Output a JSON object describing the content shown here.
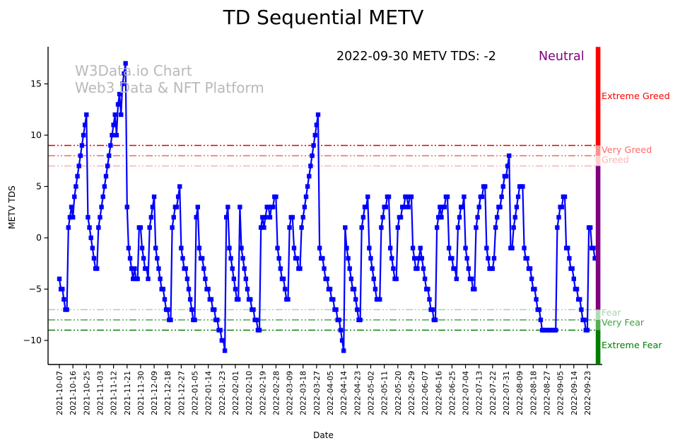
{
  "title": "TD Sequential METV",
  "watermark": {
    "line1": "W3Data.io Chart",
    "line2": "Web3 Data & NFT Platform"
  },
  "annotation": {
    "text": "2022-09-30 METV TDS: -2",
    "status": "Neutral",
    "status_color": "#800080"
  },
  "axes": {
    "x_label": "Date",
    "y_label": "METV TDS",
    "y_ticks": [
      15,
      10,
      5,
      0,
      -5,
      -10
    ],
    "y_tick_labels": [
      "15",
      "10",
      "5",
      "0",
      "−5",
      "−10"
    ],
    "x_tick_interval_days": 9,
    "x_tick_labels": [
      "2021-10-07",
      "2021-10-16",
      "2021-10-25",
      "2021-11-03",
      "2021-11-12",
      "2021-11-21",
      "2021-11-30",
      "2021-12-09",
      "2021-12-18",
      "2021-12-27",
      "2022-01-05",
      "2022-01-14",
      "2022-01-23",
      "2022-02-01",
      "2022-02-10",
      "2022-02-19",
      "2022-02-28",
      "2022-03-09",
      "2022-03-18",
      "2022-03-27",
      "2022-04-05",
      "2022-04-14",
      "2022-04-23",
      "2022-05-02",
      "2022-05-11",
      "2022-05-20",
      "2022-05-29",
      "2022-06-07",
      "2022-06-16",
      "2022-06-25",
      "2022-07-04",
      "2022-07-13",
      "2022-07-22",
      "2022-07-31",
      "2022-08-09",
      "2022-08-18",
      "2022-08-27",
      "2022-09-05",
      "2022-09-14",
      "2022-09-23"
    ],
    "ylim": [
      -12.4,
      18.6
    ],
    "grid": false
  },
  "zones": [
    {
      "label": "Extreme Greed",
      "value": 9,
      "line_color": "#e10000",
      "label_color": "#ff0000"
    },
    {
      "label": "Very Greed",
      "value": 8,
      "line_color": "#ff6262",
      "label_color": "#ff6a6a"
    },
    {
      "label": "Greed",
      "value": 7,
      "line_color": "#ffb0b0",
      "label_color": "#ffb4b4"
    },
    {
      "label": "Fear",
      "value": -7,
      "line_color": "#a5d6a5",
      "label_color": "#a9d3a9"
    },
    {
      "label": "Very Fear",
      "value": -8,
      "line_color": "#4fa04f",
      "label_color": "#41a041"
    },
    {
      "label": "Extreme Fear",
      "value": -9,
      "line_color": "#0c7c0c",
      "label_color": "#008000"
    }
  ],
  "sentiment_bar": [
    {
      "zone": "extreme-greed",
      "from_value": 18.6,
      "to_value": 9,
      "color": "#ff0000"
    },
    {
      "zone": "very-greed",
      "from_value": 9,
      "to_value": 8,
      "color": "#ff9090"
    },
    {
      "zone": "greed",
      "from_value": 8,
      "to_value": 7,
      "color": "#ffcfcf"
    },
    {
      "zone": "neutral",
      "from_value": 7,
      "to_value": -7,
      "color": "#800080"
    },
    {
      "zone": "fear",
      "from_value": -7,
      "to_value": -8,
      "color": "#b5dcb5"
    },
    {
      "zone": "very-fear",
      "from_value": -8,
      "to_value": -9,
      "color": "#5dab5d"
    },
    {
      "zone": "extreme-fear",
      "from_value": -9,
      "to_value": -12.4,
      "color": "#007d00"
    }
  ],
  "chart_data": {
    "type": "line",
    "series_name": "METV TDS",
    "start_date": "2021-10-07",
    "end_date": "2022-09-30",
    "frequency": "daily",
    "line_color": "#0000ff",
    "marker": "square",
    "title": "TD Sequential METV",
    "xlabel": "Date",
    "ylabel": "METV TDS",
    "ylim": [
      -12.4,
      18.6
    ],
    "legend_position": "none",
    "values": [
      -4,
      -5,
      -5,
      -6,
      -7,
      -7,
      1,
      2,
      3,
      2,
      4,
      5,
      6,
      7,
      8,
      9,
      10,
      11,
      12,
      2,
      1,
      0,
      -1,
      -2,
      -3,
      -3,
      1,
      2,
      3,
      4,
      5,
      6,
      7,
      8,
      9,
      10,
      11,
      12,
      10,
      13,
      14,
      12,
      15,
      16,
      17,
      3,
      -1,
      -2,
      -3,
      -4,
      -3,
      -4,
      -4,
      1,
      1,
      -1,
      -2,
      -3,
      -3,
      -4,
      1,
      2,
      3,
      4,
      -1,
      -2,
      -3,
      -4,
      -5,
      -5,
      -6,
      -7,
      -7,
      -8,
      -8,
      1,
      2,
      3,
      3,
      4,
      5,
      -1,
      -2,
      -3,
      -3,
      -4,
      -5,
      -6,
      -7,
      -8,
      -8,
      2,
      3,
      -1,
      -2,
      -2,
      -3,
      -4,
      -5,
      -5,
      -6,
      -6,
      -7,
      -7,
      -8,
      -8,
      -9,
      -9,
      -10,
      -10,
      -11,
      2,
      3,
      -1,
      -2,
      -3,
      -4,
      -5,
      -6,
      -6,
      3,
      -1,
      -2,
      -3,
      -4,
      -5,
      -6,
      -6,
      -7,
      -7,
      -8,
      -8,
      -9,
      -9,
      1,
      2,
      1,
      2,
      3,
      3,
      2,
      3,
      3,
      4,
      4,
      -1,
      -2,
      -3,
      -4,
      -4,
      -5,
      -6,
      -6,
      1,
      2,
      2,
      -1,
      -2,
      -2,
      -3,
      -3,
      1,
      2,
      3,
      4,
      5,
      6,
      7,
      8,
      9,
      10,
      11,
      12,
      -1,
      -2,
      -2,
      -3,
      -4,
      -4,
      -5,
      -5,
      -6,
      -6,
      -7,
      -7,
      -8,
      -8,
      -9,
      -10,
      -11,
      1,
      -1,
      -2,
      -3,
      -4,
      -5,
      -5,
      -6,
      -7,
      -8,
      -8,
      1,
      2,
      3,
      3,
      4,
      -1,
      -2,
      -3,
      -4,
      -5,
      -6,
      -6,
      -6,
      1,
      2,
      3,
      3,
      4,
      4,
      -1,
      -2,
      -3,
      -4,
      -4,
      1,
      2,
      2,
      3,
      3,
      4,
      4,
      3,
      4,
      4,
      -1,
      -2,
      -3,
      -3,
      -2,
      -1,
      -2,
      -3,
      -4,
      -5,
      -5,
      -6,
      -7,
      -7,
      -8,
      -8,
      1,
      2,
      3,
      2,
      3,
      3,
      4,
      4,
      -1,
      -2,
      -2,
      -3,
      -3,
      -4,
      1,
      2,
      3,
      3,
      4,
      -1,
      -2,
      -3,
      -4,
      -4,
      -5,
      -5,
      1,
      2,
      3,
      4,
      4,
      5,
      5,
      -1,
      -2,
      -3,
      -3,
      -3,
      -2,
      1,
      2,
      3,
      3,
      4,
      5,
      6,
      6,
      7,
      8,
      -1,
      -1,
      1,
      2,
      3,
      4,
      5,
      5,
      5,
      -1,
      -2,
      -2,
      -3,
      -3,
      -4,
      -5,
      -5,
      -6,
      -7,
      -7,
      -8,
      -9,
      -9,
      -9,
      -9,
      -9,
      -9,
      -9,
      -9,
      -9,
      -9,
      1,
      2,
      3,
      3,
      4,
      4,
      -1,
      -1,
      -2,
      -3,
      -3,
      -4,
      -5,
      -5,
      -6,
      -6,
      -7,
      -8,
      -8,
      -9,
      -9,
      1,
      1,
      -1,
      -1,
      -2,
      -2,
      -2
    ]
  }
}
